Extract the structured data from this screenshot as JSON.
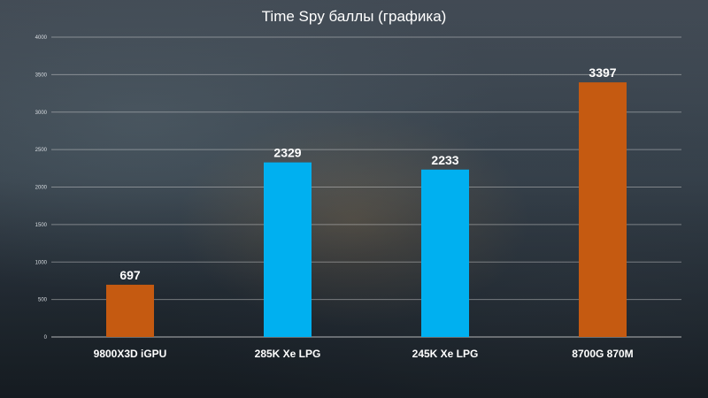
{
  "chart_data": {
    "type": "bar",
    "title": "Time Spy баллы (графика)",
    "categories": [
      "9800X3D  iGPU",
      "285K Xe LPG",
      "245K Xe LPG",
      "8700G 870M"
    ],
    "values": [
      697,
      2329,
      2233,
      3397
    ],
    "bar_colors": [
      "#c55a11",
      "#00b0f0",
      "#00b0f0",
      "#c55a11"
    ],
    "ylim": [
      0,
      4000
    ],
    "yticks": [
      0,
      500,
      1000,
      1500,
      2000,
      2500,
      3000,
      3500,
      4000
    ],
    "grid": true,
    "data_labels": true
  }
}
